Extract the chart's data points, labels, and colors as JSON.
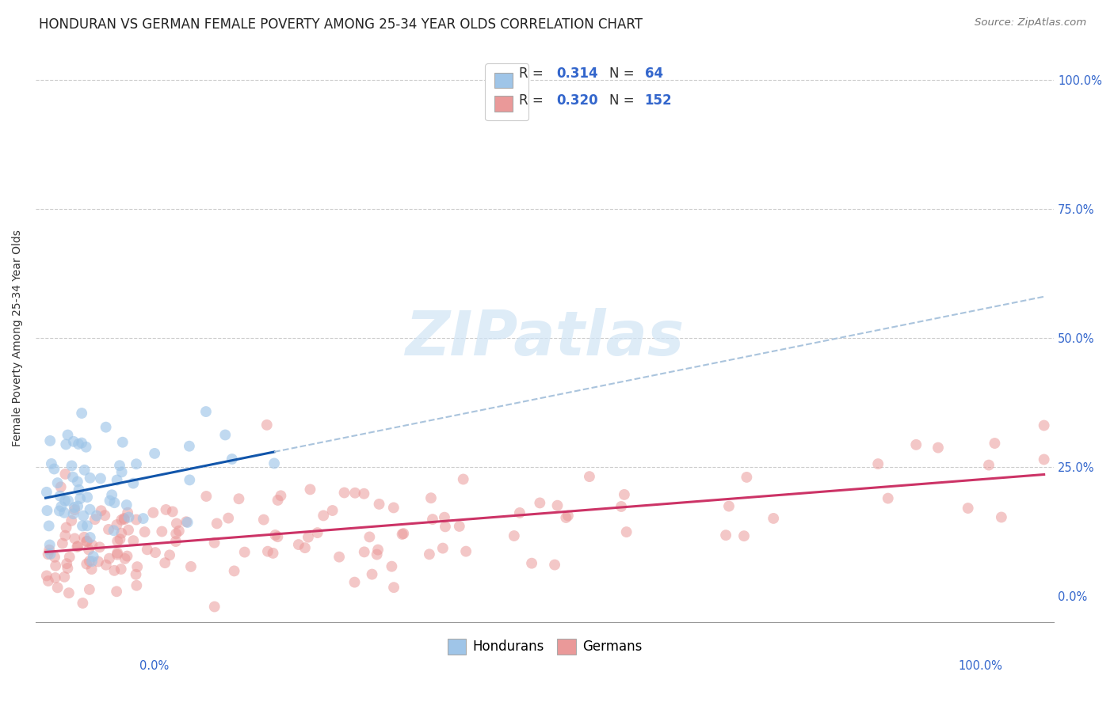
{
  "title": "HONDURAN VS GERMAN FEMALE POVERTY AMONG 25-34 YEAR OLDS CORRELATION CHART",
  "source": "Source: ZipAtlas.com",
  "ylabel": "Female Poverty Among 25-34 Year Olds",
  "xlim": [
    0.0,
    1.0
  ],
  "ylim": [
    0.0,
    1.0
  ],
  "ytick_vals": [
    0.0,
    0.25,
    0.5,
    0.75,
    1.0
  ],
  "ytick_labels": [
    "0.0%",
    "25.0%",
    "50.0%",
    "75.0%",
    "100.0%"
  ],
  "xtick_vals": [
    0.0,
    1.0
  ],
  "xtick_labels_outer": [
    "0.0%",
    "100.0%"
  ],
  "honduran_R": "0.314",
  "honduran_N": "64",
  "german_R": "0.320",
  "german_N": "152",
  "honduran_color": "#9fc5e8",
  "german_color": "#ea9999",
  "honduran_line_color": "#1155aa",
  "german_line_color": "#cc3366",
  "dashed_line_color": "#aac4dd",
  "watermark_text": "ZIPatlas",
  "watermark_color": "#d0e4f5",
  "background_color": "#ffffff",
  "grid_color": "#cccccc",
  "title_fontsize": 12,
  "axis_label_fontsize": 10,
  "tick_label_fontsize": 10.5,
  "legend_fontsize": 12,
  "source_fontsize": 9.5,
  "right_tick_color": "#3366cc",
  "bottom_tick_color": "#3366cc"
}
